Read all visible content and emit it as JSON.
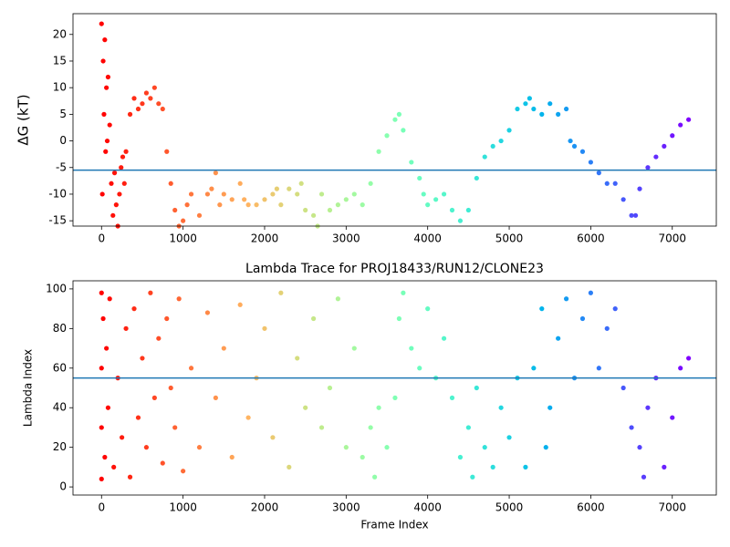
{
  "chart_data": [
    {
      "type": "scatter",
      "ylabel": "ΔG (kT)",
      "colormap": "rainbow_r",
      "hline": -5.5,
      "hline_color": "#1f77b4",
      "xlim": [
        -350,
        7540
      ],
      "ylim": [
        -16,
        23.9
      ],
      "xticks": [
        0,
        1000,
        2000,
        3000,
        4000,
        5000,
        6000,
        7000
      ],
      "yticks": [
        -15,
        -10,
        -5,
        0,
        5,
        10,
        15,
        20
      ],
      "x": [
        0,
        10,
        20,
        30,
        40,
        50,
        60,
        70,
        80,
        100,
        120,
        140,
        160,
        180,
        200,
        220,
        240,
        260,
        280,
        300,
        350,
        400,
        450,
        500,
        550,
        600,
        650,
        700,
        750,
        800,
        850,
        900,
        950,
        1000,
        1050,
        1100,
        1200,
        1300,
        1350,
        1400,
        1450,
        1500,
        1600,
        1700,
        1750,
        1800,
        1900,
        2000,
        2100,
        2150,
        2200,
        2300,
        2400,
        2450,
        2500,
        2600,
        2650,
        2700,
        2800,
        2900,
        3000,
        3100,
        3200,
        3300,
        3400,
        3500,
        3600,
        3650,
        3700,
        3800,
        3900,
        3950,
        4000,
        4100,
        4200,
        4300,
        4400,
        4500,
        4600,
        4700,
        4800,
        4900,
        5000,
        5100,
        5200,
        5250,
        5300,
        5400,
        5500,
        5600,
        5700,
        5750,
        5800,
        5900,
        6000,
        6100,
        6200,
        6300,
        6400,
        6500,
        6550,
        6600,
        6700,
        6800,
        6900,
        7000,
        7100,
        7200
      ],
      "values": [
        22,
        -10,
        15,
        5,
        19,
        -2,
        10,
        0,
        12,
        3,
        -8,
        -14,
        -6,
        -12,
        -16,
        -10,
        -5,
        -3,
        -8,
        -2,
        5,
        8,
        6,
        7,
        9,
        8,
        10,
        7,
        6,
        -2,
        -8,
        -13,
        -16,
        -15,
        -12,
        -10,
        -14,
        -10,
        -9,
        -6,
        -12,
        -10,
        -11,
        -8,
        -11,
        -12,
        -12,
        -11,
        -10,
        -9,
        -12,
        -9,
        -10,
        -8,
        -13,
        -14,
        -16,
        -10,
        -13,
        -12,
        -11,
        -10,
        -12,
        -8,
        -2,
        1,
        4,
        5,
        2,
        -4,
        -7,
        -10,
        -12,
        -11,
        -10,
        -13,
        -15,
        -13,
        -7,
        -3,
        -1,
        0,
        2,
        6,
        7,
        8,
        6,
        5,
        7,
        5,
        6,
        0,
        -1,
        -2,
        -4,
        -6,
        -8,
        -8,
        -11,
        -14,
        -14,
        -9,
        -5,
        -3,
        -1,
        1,
        3,
        4
      ]
    },
    {
      "type": "scatter",
      "title": "Lambda Trace for PROJ18433/RUN12/CLONE23",
      "xlabel": "Frame Index",
      "ylabel": "Lambda Index",
      "colormap": "rainbow_r",
      "hline": 55,
      "hline_color": "#1f77b4",
      "xlim": [
        -350,
        7540
      ],
      "ylim": [
        -4.1,
        104.1
      ],
      "xticks": [
        0,
        1000,
        2000,
        3000,
        4000,
        5000,
        6000,
        7000
      ],
      "yticks": [
        0,
        20,
        40,
        60,
        80,
        100
      ],
      "x": [
        0,
        0,
        0,
        0,
        20,
        40,
        60,
        80,
        100,
        150,
        200,
        250,
        300,
        350,
        400,
        450,
        500,
        550,
        600,
        650,
        700,
        750,
        800,
        850,
        900,
        950,
        1000,
        1100,
        1200,
        1300,
        1400,
        1500,
        1600,
        1700,
        1800,
        1900,
        2000,
        2100,
        2200,
        2300,
        2400,
        2500,
        2600,
        2700,
        2800,
        2900,
        3000,
        3100,
        3200,
        3300,
        3350,
        3400,
        3500,
        3600,
        3650,
        3700,
        3800,
        3900,
        4000,
        4100,
        4200,
        4300,
        4400,
        4500,
        4550,
        4600,
        4700,
        4800,
        4900,
        5000,
        5100,
        5200,
        5300,
        5400,
        5450,
        5500,
        5600,
        5700,
        5800,
        5900,
        6000,
        6100,
        6200,
        6300,
        6400,
        6500,
        6600,
        6650,
        6700,
        6800,
        6900,
        7000,
        7100,
        7200
      ],
      "values": [
        98,
        4,
        60,
        30,
        85,
        15,
        70,
        40,
        95,
        10,
        55,
        25,
        80,
        5,
        90,
        35,
        65,
        20,
        98,
        45,
        75,
        12,
        85,
        50,
        30,
        95,
        8,
        60,
        20,
        88,
        45,
        70,
        15,
        92,
        35,
        55,
        80,
        25,
        98,
        10,
        65,
        40,
        85,
        30,
        50,
        95,
        20,
        70,
        15,
        30,
        5,
        40,
        20,
        45,
        85,
        98,
        70,
        60,
        90,
        55,
        75,
        45,
        15,
        30,
        5,
        50,
        20,
        10,
        40,
        25,
        55,
        10,
        60,
        90,
        20,
        40,
        75,
        95,
        55,
        85,
        98,
        60,
        80,
        90,
        50,
        30,
        20,
        5,
        40,
        55,
        10,
        35,
        60,
        65
      ]
    }
  ]
}
